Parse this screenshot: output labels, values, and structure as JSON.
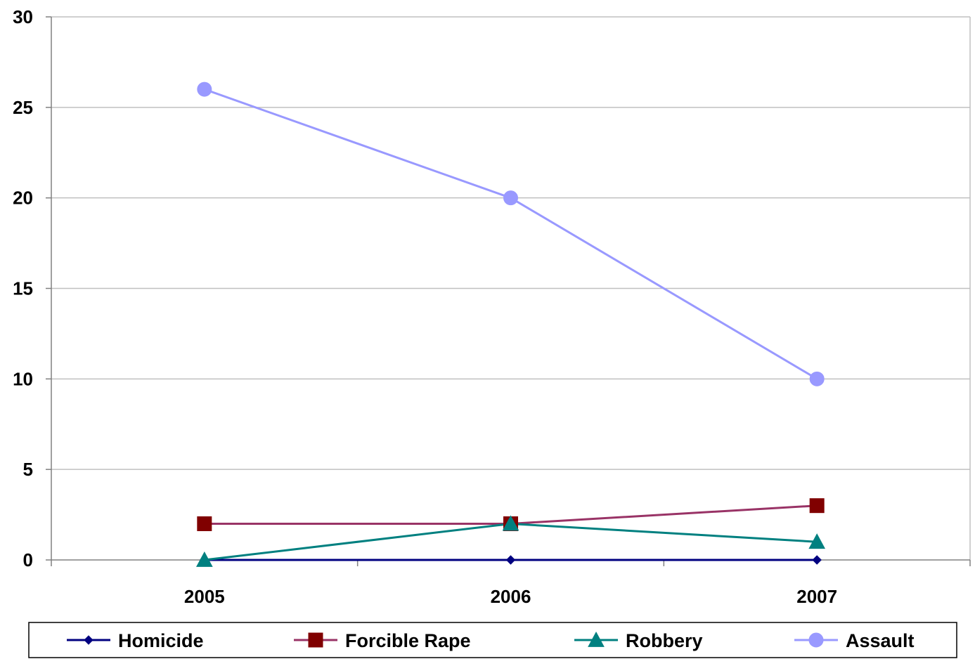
{
  "chart_data": {
    "type": "line",
    "categories": [
      "2005",
      "2006",
      "2007"
    ],
    "ylim": [
      0,
      30
    ],
    "yticks": [
      0,
      5,
      10,
      15,
      20,
      25,
      30
    ],
    "grid": true,
    "legend_position": "bottom",
    "series": [
      {
        "name": "Homicide",
        "values": [
          0,
          0,
          0
        ],
        "color": "#000080",
        "marker": "diamond"
      },
      {
        "name": "Forcible Rape",
        "values": [
          2,
          2,
          3
        ],
        "color": "#800000",
        "line_color": "#993366",
        "marker": "square"
      },
      {
        "name": "Robbery",
        "values": [
          0,
          2,
          1
        ],
        "color": "#008080",
        "marker": "triangle"
      },
      {
        "name": "Assault",
        "values": [
          26,
          20,
          10
        ],
        "color": "#9999ff",
        "marker": "circle"
      }
    ]
  }
}
